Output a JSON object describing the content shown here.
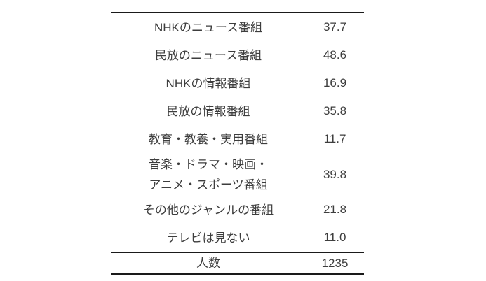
{
  "table": {
    "rows": [
      {
        "label": "NHKのニュース番組",
        "value": "37.7"
      },
      {
        "label": "民放のニュース番組",
        "value": "48.6"
      },
      {
        "label": "NHKの情報番組",
        "value": "16.9"
      },
      {
        "label": "民放の情報番組",
        "value": "35.8"
      },
      {
        "label": "教育・教養・実用番組",
        "value": "11.7"
      },
      {
        "label": "音楽・ドラマ・映画・\nアニメ・スポーツ番組",
        "value": "39.8"
      },
      {
        "label": "その他のジャンルの番組",
        "value": "21.8"
      },
      {
        "label": "テレビは見ない",
        "value": "11.0"
      }
    ],
    "summary": {
      "label": "人数",
      "value": "1235"
    },
    "colors": {
      "text": "#3d3d3d",
      "rule": "#1a1a1a",
      "background": "#ffffff"
    }
  },
  "chart_data": {
    "type": "table",
    "categories": [
      "NHKのニュース番組",
      "民放のニュース番組",
      "NHKの情報番組",
      "民放の情報番組",
      "教育・教養・実用番組",
      "音楽・ドラマ・映画・アニメ・スポーツ番組",
      "その他のジャンルの番組",
      "テレビは見ない"
    ],
    "values": [
      37.7,
      48.6,
      16.9,
      35.8,
      11.7,
      39.8,
      21.8,
      11.0
    ],
    "summary_label": "人数",
    "summary_value": 1235,
    "title": "",
    "xlabel": "",
    "ylabel": ""
  }
}
